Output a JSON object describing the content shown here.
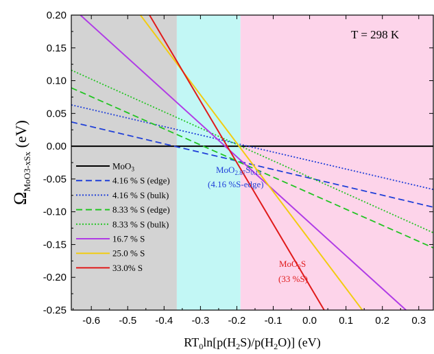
{
  "chart_data": {
    "type": "line",
    "xlim": [
      -0.655,
      0.34
    ],
    "ylim": [
      -0.25,
      0.2
    ],
    "x_ticks": [
      "-0.6",
      "-0.5",
      "-0.4",
      "-0.3",
      "-0.2",
      "-0.1",
      "0.0",
      "0.1",
      "0.2",
      "0.3"
    ],
    "x_tick_values": [
      -0.6,
      -0.5,
      -0.4,
      -0.3,
      -0.2,
      -0.1,
      0.0,
      0.1,
      0.2,
      0.3
    ],
    "y_ticks": [
      "0.20",
      "0.15",
      "0.10",
      "0.05",
      "0.00",
      "-0.05",
      "-0.10",
      "-0.15",
      "-0.20",
      "-0.25"
    ],
    "y_tick_values": [
      0.2,
      0.15,
      0.1,
      0.05,
      0.0,
      -0.05,
      -0.1,
      -0.15,
      -0.2,
      -0.25
    ],
    "xlabel": {
      "main": "RT",
      "sub0": "0",
      "mid1": "ln[p(H",
      "sub1": "2",
      "mid2": "S)/p(H",
      "sub2": "2",
      "end": "O)] (eV)"
    },
    "ylabel": {
      "main": "Ω",
      "sub": "MoO3-xSx",
      "unit": " (eV)"
    },
    "regions": [
      {
        "name": "MoO3 region",
        "x0": -0.655,
        "x1": -0.365,
        "color": "#d3d3d3"
      },
      {
        "name": "MoO2.87S0.13 region",
        "x0": -0.365,
        "x1": -0.19,
        "color": "#c2f7f5"
      },
      {
        "name": "MoO2S region",
        "x0": -0.19,
        "x1": 0.34,
        "color": "#fdd4ea"
      }
    ],
    "series": [
      {
        "name": "MoO3",
        "label_main": "MoO",
        "label_sub": "3",
        "label_rest": "",
        "color": "#000000",
        "dash": "",
        "x": [
          -0.655,
          0.34
        ],
        "y": [
          0.0,
          0.0
        ]
      },
      {
        "name": "4.16 % S (edge)",
        "label_main": "4.16 % S (edge)",
        "label_sub": "",
        "label_rest": "",
        "color": "#1f3fd8",
        "dash": "9,5",
        "x": [
          -0.655,
          0.34
        ],
        "y": [
          0.037,
          -0.093
        ]
      },
      {
        "name": "4.16 % S (bulk)",
        "label_main": "4.16 % S (bulk)",
        "label_sub": "",
        "label_rest": "",
        "color": "#1f3fd8",
        "dash": "2,2.5",
        "x": [
          -0.655,
          0.34
        ],
        "y": [
          0.063,
          -0.066
        ]
      },
      {
        "name": "8.33 % S (edge)",
        "label_main": "8.33 % S (edge)",
        "label_sub": "",
        "label_rest": "",
        "color": "#22c422",
        "dash": "9,5",
        "x": [
          -0.655,
          0.34
        ],
        "y": [
          0.089,
          -0.155
        ]
      },
      {
        "name": "8.33 % S (bulk)",
        "label_main": "8.33 % S (bulk)",
        "label_sub": "",
        "label_rest": "",
        "color": "#22c422",
        "dash": "2,2.5",
        "x": [
          -0.655,
          0.34
        ],
        "y": [
          0.116,
          -0.132
        ]
      },
      {
        "name": "16.7 % S",
        "label_main": "16.7 % S",
        "label_sub": "",
        "label_rest": "",
        "color": "#b03be6",
        "dash": "",
        "x": [
          -0.63,
          0.265
        ],
        "y": [
          0.2,
          -0.25
        ]
      },
      {
        "name": "25.0 % S",
        "label_main": "25.0 % S",
        "label_sub": "",
        "label_rest": "",
        "color": "#f2cc11",
        "dash": "",
        "x": [
          -0.465,
          0.145
        ],
        "y": [
          0.2,
          -0.25
        ]
      },
      {
        "name": "33.0% S",
        "label_main": "33.0% S",
        "label_sub": "",
        "label_rest": "",
        "color": "#e01a1a",
        "dash": "",
        "x": [
          -0.44,
          0.04
        ],
        "y": [
          0.2,
          -0.25
        ]
      }
    ],
    "annotations": {
      "temperature": "T = 298 K",
      "mid_phase": {
        "p1": "MoO",
        "s1": "2.87",
        "p2": "S",
        "s2": "0.13",
        "line2": "(4.16 %S-edge)",
        "color": "#1f3fd8"
      },
      "right_phase": {
        "p1": "MoO",
        "s1": "2",
        "p2": "S",
        "line2": "(33 %S)",
        "color": "#e01a1a"
      }
    }
  }
}
